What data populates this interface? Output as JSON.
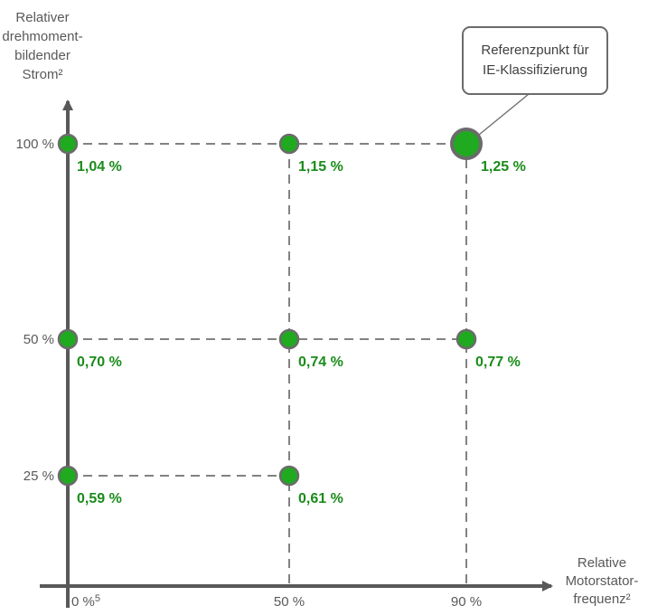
{
  "chart_data": {
    "type": "scatter",
    "title": "",
    "y_axis": {
      "title_lines": [
        "Relativer",
        "drehmoment-",
        "bildender",
        "Strom²"
      ],
      "ticks": [
        {
          "value": 25,
          "label": "25 %"
        },
        {
          "value": 50,
          "label": "50 %"
        },
        {
          "value": 100,
          "label": "100 %"
        }
      ]
    },
    "x_axis": {
      "title_lines": [
        "Relative",
        "Motorstator-",
        "frequenz²"
      ],
      "ticks": [
        {
          "value": 0,
          "label": "0 %",
          "sup": "5"
        },
        {
          "value": 50,
          "label": "50 %"
        },
        {
          "value": 90,
          "label": "90 %"
        }
      ]
    },
    "points": [
      {
        "x": 0,
        "y": 100,
        "label": "1,04 %"
      },
      {
        "x": 50,
        "y": 100,
        "label": "1,15 %"
      },
      {
        "x": 90,
        "y": 100,
        "label": "1,25 %",
        "highlight": true
      },
      {
        "x": 0,
        "y": 50,
        "label": "0,70 %"
      },
      {
        "x": 50,
        "y": 50,
        "label": "0,74 %"
      },
      {
        "x": 90,
        "y": 50,
        "label": "0,77 %"
      },
      {
        "x": 0,
        "y": 25,
        "label": "0,59 %"
      },
      {
        "x": 50,
        "y": 25,
        "label": "0,61 %"
      }
    ],
    "callout": {
      "lines": [
        "Referenzpunkt für",
        "IE-Klassifizierung"
      ],
      "target": {
        "x": 90,
        "y": 100
      }
    },
    "colors": {
      "point_fill": "#1faa1f",
      "point_stroke": "#6b6b6b",
      "value_label": "#1a8c1a",
      "axis": "#595959",
      "grid_dash": "#595959",
      "callout_border": "#6b6b6b"
    }
  }
}
